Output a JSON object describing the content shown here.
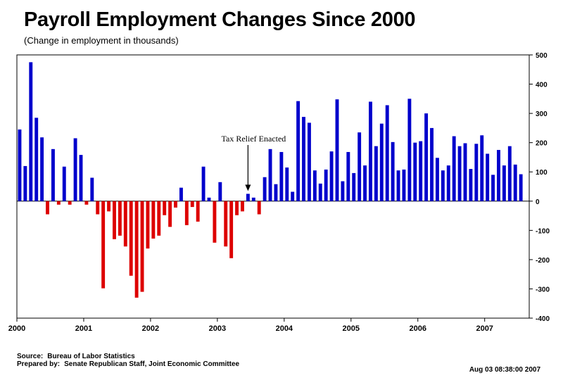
{
  "chart_data": {
    "type": "bar",
    "title": "Payroll Employment Changes Since 2000",
    "subtitle": "(Change in employment in thousands)",
    "ylim": [
      -400,
      500
    ],
    "y_ticks": [
      500,
      400,
      300,
      200,
      100,
      0,
      -100,
      -200,
      -300,
      -400
    ],
    "x_tick_labels": [
      "2000",
      "2001",
      "2002",
      "2003",
      "2004",
      "2005",
      "2006",
      "2007"
    ],
    "positive_color": "#0000cc",
    "negative_color": "#dd0000",
    "annotation": {
      "text": "Tax Relief Enacted",
      "target_month_index": 41
    },
    "start": "Jan 2000",
    "values": [
      245,
      120,
      475,
      285,
      218,
      -45,
      178,
      -12,
      118,
      -12,
      215,
      158,
      -12,
      80,
      -45,
      -298,
      -35,
      -130,
      -118,
      -155,
      -255,
      -330,
      -310,
      -162,
      -128,
      -118,
      -48,
      -88,
      -22,
      46,
      -82,
      -20,
      -70,
      118,
      12,
      -142,
      65,
      -155,
      -195,
      -48,
      -35,
      25,
      12,
      -45,
      82,
      178,
      58,
      168,
      115,
      32,
      342,
      288,
      268,
      105,
      60,
      108,
      170,
      348,
      68,
      168,
      96,
      235,
      122,
      340,
      188,
      265,
      328,
      202,
      105,
      108,
      350,
      200,
      205,
      300,
      250,
      148,
      105,
      122,
      222,
      188,
      198,
      110,
      196,
      225,
      162,
      90,
      175,
      122,
      188,
      125,
      92
    ]
  },
  "footer": {
    "source_label": "Source:",
    "source_value": "Bureau of Labor Statistics",
    "prepared_label": "Prepared by:",
    "prepared_value": "Senate Republican Staff, Joint Economic Committee",
    "timestamp": "Aug 03 08:38:00 2007"
  }
}
